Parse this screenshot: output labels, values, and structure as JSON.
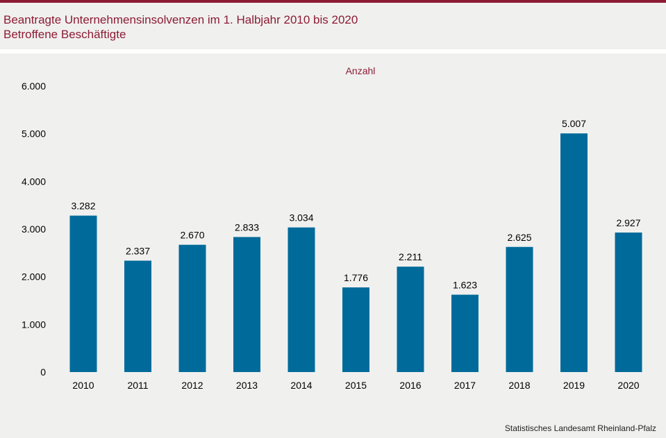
{
  "header": {
    "title": "Beantragte Unternehmensinsolvenzen im 1. Halbjahr 2010 bis 2020",
    "subtitle": "Betroffene Beschäftigte"
  },
  "chart_data": {
    "type": "bar",
    "unit_label": "Anzahl",
    "categories": [
      "2010",
      "2011",
      "2012",
      "2013",
      "2014",
      "2015",
      "2016",
      "2017",
      "2018",
      "2019",
      "2020"
    ],
    "values": [
      3282,
      2337,
      2670,
      2833,
      3034,
      1776,
      2211,
      1623,
      2625,
      5007,
      2927
    ],
    "value_labels": [
      "3.282",
      "2.337",
      "2.670",
      "2.833",
      "3.034",
      "1.776",
      "2.211",
      "1.623",
      "2.625",
      "5.007",
      "2.927"
    ],
    "yticks": [
      0,
      1000,
      2000,
      3000,
      4000,
      5000,
      6000
    ],
    "ytick_labels": [
      "0",
      "1.000",
      "2.000",
      "3.000",
      "4.000",
      "5.000",
      "6.000"
    ],
    "ylim": [
      0,
      6000
    ],
    "grid": false,
    "bar_color": "#006b9a",
    "title_color": "#8c1c33"
  },
  "footer": {
    "source": "Statistisches Landesamt  Rheinland-Pfalz"
  }
}
